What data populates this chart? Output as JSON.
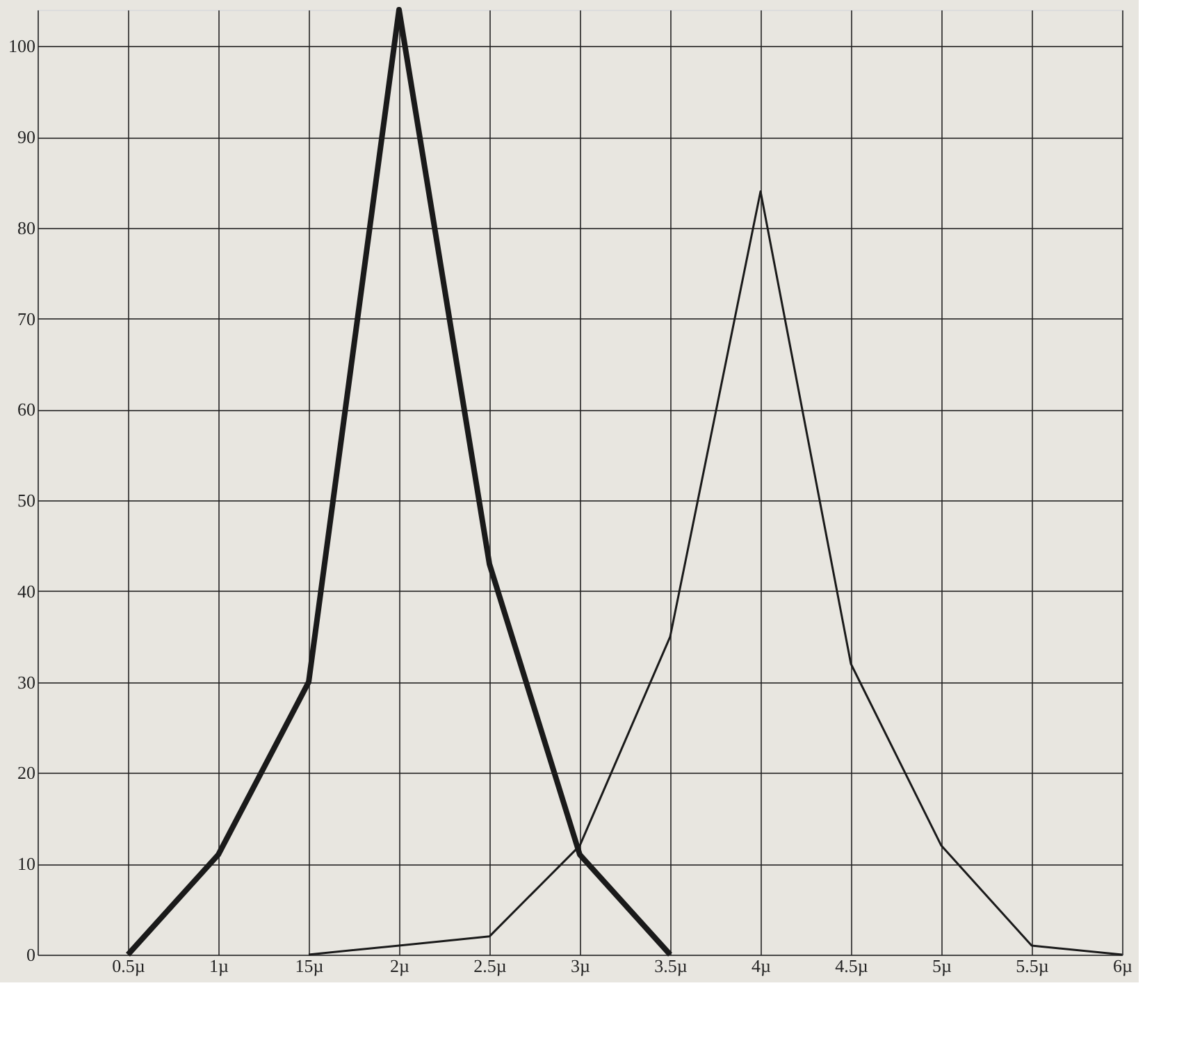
{
  "chart_data": {
    "type": "line",
    "ylim": [
      0,
      104
    ],
    "categories": [
      null,
      "0.5µ",
      "1µ",
      "15µ",
      "2µ",
      "2.5µ",
      "3µ",
      "3.5µ",
      "4µ",
      "4.5µ",
      "5µ",
      "5.5µ",
      "6µ"
    ],
    "yticks": [
      0,
      10,
      20,
      30,
      40,
      50,
      60,
      70,
      80,
      90,
      100
    ],
    "grid": true,
    "marker": "none",
    "line_style": "solid",
    "series": [
      {
        "color": "#1a1a1a",
        "values": [
          null,
          0,
          11,
          30,
          104,
          43,
          11,
          0,
          null,
          null,
          null,
          null,
          null
        ]
      },
      {
        "color": "#1a1a1a",
        "values": [
          null,
          null,
          null,
          0,
          1,
          2,
          12,
          35,
          84,
          32,
          12,
          1,
          0
        ]
      }
    ]
  }
}
